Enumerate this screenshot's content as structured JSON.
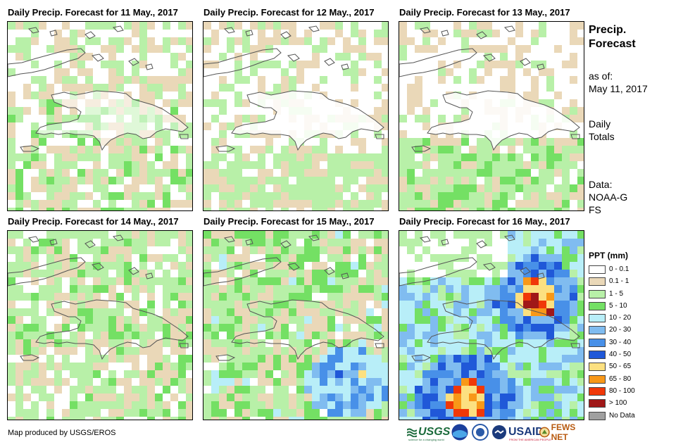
{
  "panels": [
    {
      "title": "Daily Precip. Forecast for 11 May., 2017",
      "profile": "d1"
    },
    {
      "title": "Daily Precip. Forecast for 12 May., 2017",
      "profile": "d2"
    },
    {
      "title": "Daily Precip. Forecast for 13 May., 2017",
      "profile": "d3"
    },
    {
      "title": "Daily Precip. Forecast for 14 May., 2017",
      "profile": "d4"
    },
    {
      "title": "Daily Precip. Forecast for 15 May., 2017",
      "profile": "d5"
    },
    {
      "title": "Daily Precip. Forecast for 16 May., 2017",
      "profile": "d6"
    }
  ],
  "sidebar": {
    "title": "Precip. Forecast",
    "as_of_label": "as of:",
    "as_of_date": "May 11, 2017",
    "daily_totals": "Daily Totals",
    "data_label": "Data:",
    "data_source": "NOAA-GFS"
  },
  "legend": {
    "title": "PPT (mm)",
    "items": [
      {
        "label": "0 - 0.1",
        "color": "#ffffff"
      },
      {
        "label": "0.1 - 1",
        "color": "#ead8b8"
      },
      {
        "label": "1 - 5",
        "color": "#b8f0a8"
      },
      {
        "label": "5 - 10",
        "color": "#74e064"
      },
      {
        "label": "10 - 20",
        "color": "#b8eef8"
      },
      {
        "label": "20 - 30",
        "color": "#80bcf0"
      },
      {
        "label": "30 - 40",
        "color": "#4890e8"
      },
      {
        "label": "40 - 50",
        "color": "#2058d8"
      },
      {
        "label": "50 - 65",
        "color": "#fce080"
      },
      {
        "label": "65 - 80",
        "color": "#f89818"
      },
      {
        "label": "80 - 100",
        "color": "#f03808"
      },
      {
        "label": "> 100",
        "color": "#a01818"
      },
      {
        "label": "No Data",
        "color": "#a0a0a0"
      }
    ]
  },
  "credit": "Map produced by USGS/EROS",
  "logos": {
    "usgs": "USGS",
    "usgs_tagline": "science for a changing world",
    "usaid": "USAID",
    "usaid_tagline": "FROM THE AMERICAN PEOPLE",
    "fewsnet": "FEWS NET"
  }
}
